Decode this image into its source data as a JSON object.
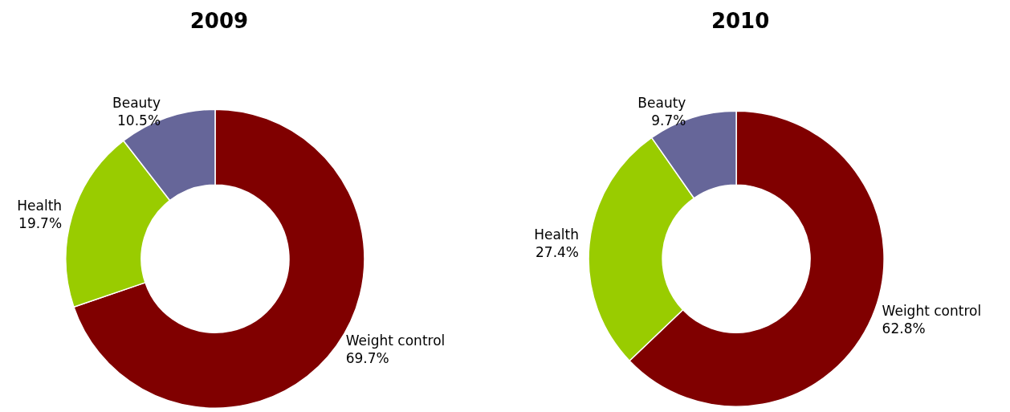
{
  "chart_data": [
    {
      "type": "donut",
      "title": "2009",
      "categories": [
        "Weight control",
        "Health",
        "Beauty"
      ],
      "values": [
        69.7,
        19.7,
        10.5
      ],
      "colors": [
        "#800000",
        "#99cc00",
        "#666699"
      ],
      "value_labels": [
        "69.7%",
        "19.7%",
        "10.5%"
      ]
    },
    {
      "type": "donut",
      "title": "2010",
      "categories": [
        "Weight control",
        "Health",
        "Beauty"
      ],
      "values": [
        62.8,
        27.4,
        9.7
      ],
      "colors": [
        "#800000",
        "#99cc00",
        "#666699"
      ],
      "value_labels": [
        "62.8%",
        "27.4%",
        "9.7%"
      ]
    }
  ]
}
